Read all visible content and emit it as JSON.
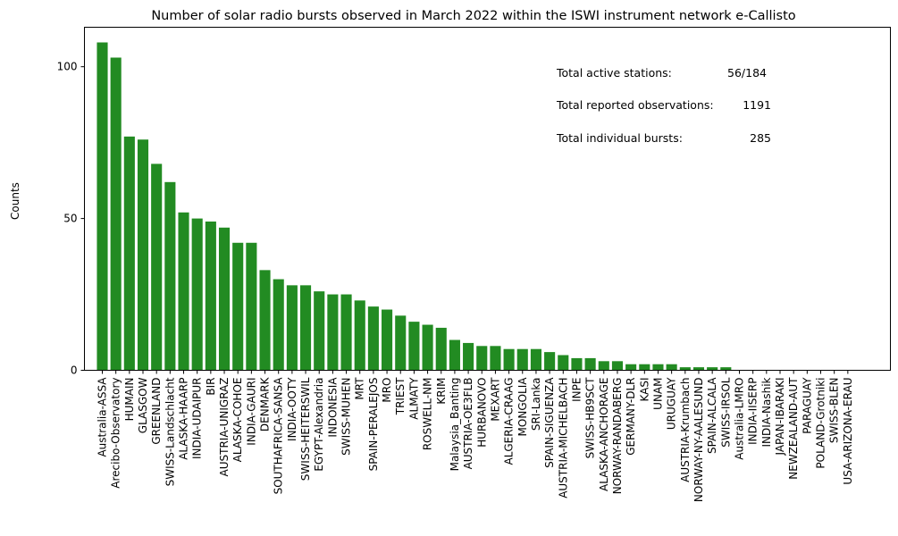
{
  "chart_data": {
    "type": "bar",
    "title": "Number of solar radio bursts observed in March 2022 within the ISWI instrument network e-Callisto",
    "xlabel": "",
    "ylabel": "Counts",
    "ylim": [
      0,
      113
    ],
    "yticks": [
      0,
      50,
      100
    ],
    "grid": false,
    "bar_color": "#228b22",
    "categories": [
      "Australia-ASSA",
      "Arecibo-Observatory",
      "HUMAIN",
      "GLASGOW",
      "GREENLAND",
      "SWISS-Landschlacht",
      "ALASKA-HAARP",
      "INDIA-UDAIPUR",
      "BIR",
      "AUSTRIA-UNIGRAZ",
      "ALASKA-COHOE",
      "INDIA-GAURI",
      "DENMARK",
      "SOUTHAFRICA-SANSA",
      "INDIA-OOTY",
      "SWISS-HEITERSWIL",
      "EGYPT-Alexandria",
      "INDONESIA",
      "SWISS-MUHEN",
      "MRT",
      "SPAIN-PERALEJOS",
      "MRO",
      "TRIEST",
      "ALMATY",
      "ROSWELL-NM",
      "KRIM",
      "Malaysia_Banting",
      "AUSTRIA-OE3FLB",
      "HURBANOVO",
      "MEXART",
      "ALGERIA-CRAAG",
      "MONGOLIA",
      "SRI-Lanka",
      "SPAIN-SIGUENZA",
      "AUSTRIA-MICHELBACH",
      "INPE",
      "SWISS-HB9SCT",
      "ALASKA-ANCHORAGE",
      "NORWAY-RANDABERG",
      "GERMANY-DLR",
      "KASI",
      "UNAM",
      "URUGUAY",
      "AUSTRIA-Krumbach",
      "NORWAY-NY-AALESUND",
      "SPAIN-ALCALA",
      "SWISS-IRSOL",
      "Australia-LMRO",
      "INDIA-IISERP",
      "INDIA-Nashik",
      "JAPAN-IBARAKI",
      "NEWZEALAND-AUT",
      "PARAGUAY",
      "POLAND-Grotniki",
      "SWISS-BLEN",
      "USA-ARIZONA-ERAU"
    ],
    "values": [
      108,
      103,
      77,
      76,
      68,
      62,
      52,
      50,
      49,
      47,
      42,
      42,
      33,
      30,
      28,
      28,
      26,
      25,
      25,
      23,
      21,
      20,
      18,
      16,
      15,
      14,
      10,
      9,
      8,
      8,
      7,
      7,
      7,
      6,
      5,
      4,
      4,
      3,
      3,
      2,
      2,
      2,
      2,
      1,
      1,
      1,
      1,
      0,
      0,
      0,
      0,
      0,
      0,
      0,
      0,
      0
    ],
    "annotations": [
      {
        "label": "Total active stations:",
        "value": "56/184"
      },
      {
        "label": "Total reported observations:",
        "value": "1191"
      },
      {
        "label": "Total individual bursts:",
        "value": "285"
      }
    ]
  }
}
